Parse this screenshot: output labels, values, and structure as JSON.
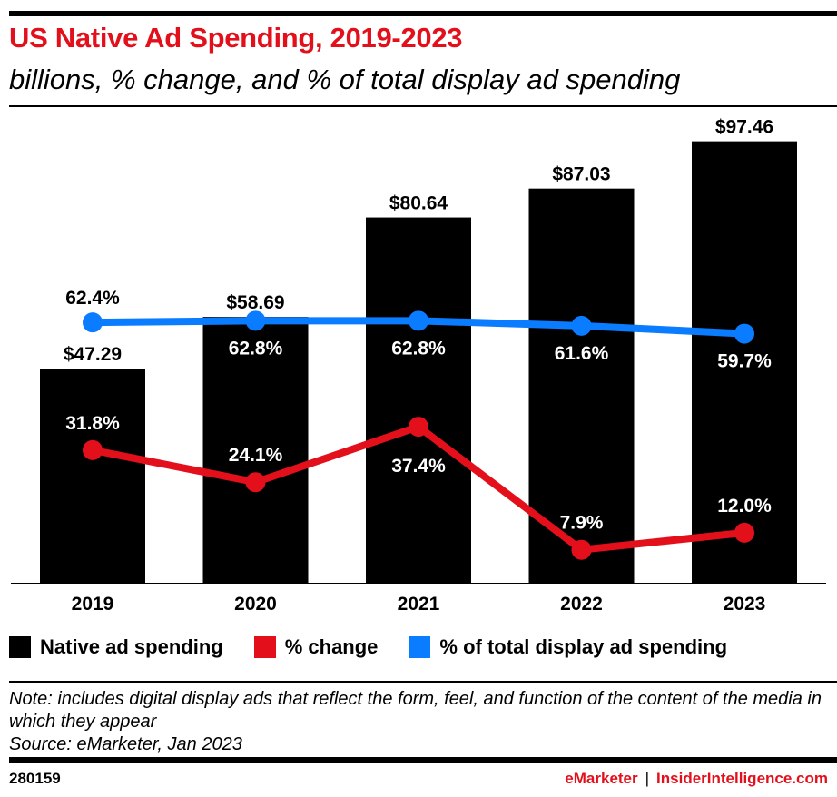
{
  "title": "US Native Ad Spending, 2019-2023",
  "subtitle": "billions, % change, and % of total display ad spending",
  "chart_data": {
    "type": "bar",
    "categories": [
      "2019",
      "2020",
      "2021",
      "2022",
      "2023"
    ],
    "ylim": [
      0,
      105
    ],
    "y2lim": [
      0,
      114
    ],
    "grid": false,
    "legend_placement": "bottom",
    "series": [
      {
        "name": "Native ad spending",
        "type": "bar",
        "color": "#000000",
        "values": [
          47.29,
          58.69,
          80.64,
          87.03,
          97.46
        ],
        "labels": [
          "$47.29",
          "$58.69",
          "$80.64",
          "$87.03",
          "$97.46"
        ]
      },
      {
        "name": "% change",
        "type": "line",
        "axis": "secondary",
        "color": "#e3101c",
        "values": [
          31.8,
          24.1,
          37.4,
          7.9,
          12.0
        ],
        "labels": [
          "31.8%",
          "24.1%",
          "37.4%",
          "7.9%",
          "12.0%"
        ]
      },
      {
        "name": "% of total display ad spending",
        "type": "line",
        "axis": "secondary",
        "color": "#0a7cff",
        "values": [
          62.4,
          62.8,
          62.8,
          61.6,
          59.7
        ],
        "labels": [
          "62.4%",
          "62.8%",
          "62.8%",
          "61.6%",
          "59.7%"
        ]
      }
    ]
  },
  "note": "Note: includes digital display ads that reflect the form, feel, and function of the content of the media in which they appear",
  "source": "Source: eMarketer, Jan 2023",
  "figure_id": "280159",
  "brand": {
    "left": "eMarketer",
    "separator": "|",
    "right": "InsiderIntelligence.com"
  }
}
